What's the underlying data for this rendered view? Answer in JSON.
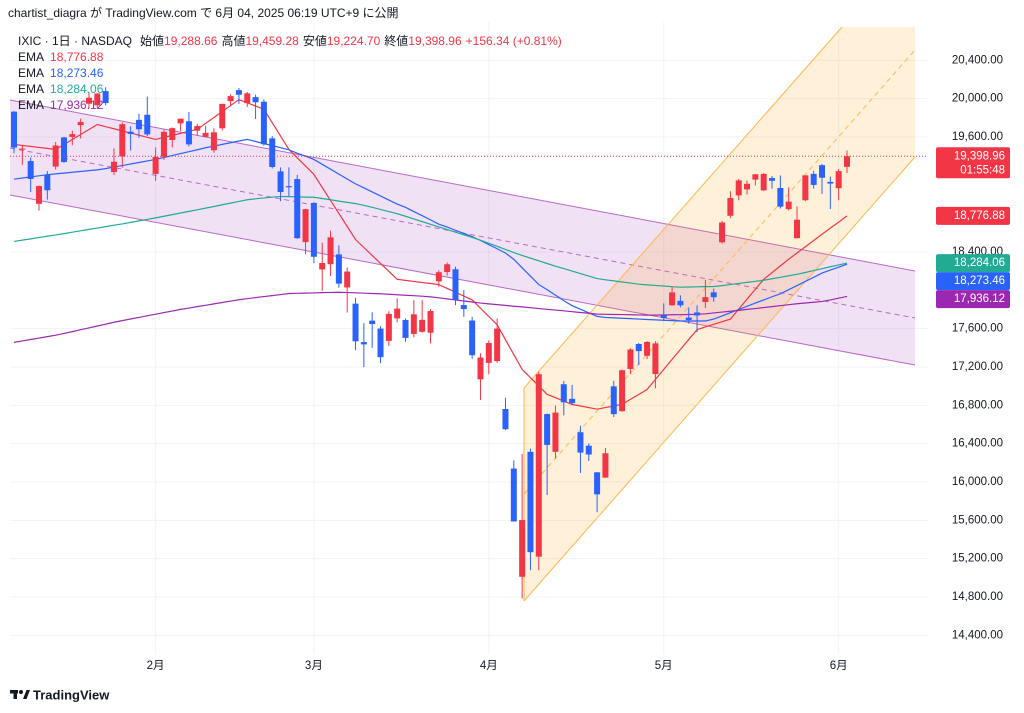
{
  "header": {
    "publisher": "chartist_diagra が TradingView.com で 6月 04, 2025 06:19 UTC+9 に公開"
  },
  "chart_data": {
    "type": "candlestick",
    "title": "IXIC · 1日 · NASDAQ",
    "ohlc_legend": [
      {
        "label": "始値",
        "value": "19,288.66"
      },
      {
        "label": "高値",
        "value": "19,459.28"
      },
      {
        "label": "安値",
        "value": "19,224.70"
      },
      {
        "label": "終値",
        "value": "19,398.96"
      }
    ],
    "change": "+156.34 (+0.81%)",
    "categories": [
      null,
      null,
      null,
      null,
      null,
      null,
      null,
      null,
      null,
      null,
      null,
      null,
      null,
      null,
      null,
      null,
      null,
      "2月",
      null,
      null,
      null,
      null,
      null,
      null,
      null,
      null,
      null,
      null,
      null,
      null,
      null,
      null,
      null,
      null,
      null,
      null,
      "3月",
      null,
      null,
      null,
      null,
      null,
      null,
      null,
      null,
      null,
      null,
      null,
      null,
      null,
      null,
      null,
      null,
      null,
      null,
      null,
      null,
      "4月",
      null,
      null,
      null,
      null,
      null,
      null,
      null,
      null,
      null,
      null,
      null,
      null,
      null,
      null,
      null,
      null,
      null,
      null,
      null,
      null,
      "5月",
      null,
      null,
      null,
      null,
      null,
      null,
      null,
      null,
      null,
      null,
      null,
      null,
      null,
      null,
      null,
      null,
      null,
      null,
      null,
      null,
      "6月",
      null
    ],
    "open": [
      19864,
      19469,
      19349,
      18903,
      19206,
      19291,
      19595,
      19601,
      19724,
      19947,
      19930,
      20079,
      19234,
      19398,
      19655,
      19779,
      19832,
      19215,
      19394,
      19569,
      19742,
      19764,
      19666,
      19602,
      19461,
      19691,
      19974,
      20089,
      19953,
      20016,
      19968,
      19586,
      19241,
      19087,
      19161,
      18503,
      18912,
      18218,
      18273,
      18375,
      18030,
      17861,
      17460,
      17684,
      17601,
      17473,
      17707,
      17691,
      17545,
      17567,
      17558,
      18094,
      18191,
      18220,
      17846,
      17685,
      17071,
      17243,
      17262,
      16762,
      16140,
      15011,
      16315,
      15221,
      16709,
      16315,
      17020,
      16868,
      16519,
      16379,
      16101,
      16046,
      16998,
      16739,
      17180,
      17440,
      17317,
      17126,
      17740,
      17844,
      17890,
      17716,
      17769,
      17878,
      17979,
      18501,
      18778,
      18991,
      19053,
      19155,
      19043,
      19172,
      19068,
      18848,
      18544,
      18940,
      19215,
      19306,
      19132,
      19066,
      19288.66
    ],
    "high": [
      19871,
      19517,
      19386,
      19094,
      19245,
      19548,
      19602,
      19666,
      19792,
      20068,
      20057,
      20118,
      19481,
      19752,
      19711,
      19842,
      20022,
      19491,
      19676,
      19700,
      19792,
      19862,
      19738,
      19716,
      19691,
      19948,
      20045,
      20111,
      20070,
      20042,
      19993,
      19609,
      19283,
      19283,
      19205,
      18852,
      18920,
      18498,
      18622,
      18469,
      18239,
      17922,
      17658,
      17771,
      17626,
      17782,
      17915,
      17707,
      17898,
      17897,
      17802,
      18209,
      18290,
      18247,
      18003,
      17723,
      17343,
      17477,
      17707,
      16878,
      16226,
      16292,
      16348,
      17152,
      16715,
      16798,
      17054,
      17013,
      16586,
      16402,
      16105,
      16355,
      17056,
      17172,
      17395,
      17450,
      17470,
      17470,
      17864,
      18040,
      17948,
      17821,
      17844,
      18109,
      18018,
      18725,
      19034,
      19163,
      19146,
      19212,
      19224,
      19193,
      19199,
      19074,
      18876,
      19199,
      19247,
      19318,
      19187,
      19265,
      19459.28
    ],
    "low": [
      19431,
      19308,
      19025,
      18831,
      18946,
      19260,
      19330,
      19514,
      19585,
      19900,
      19892,
      19930,
      19204,
      19280,
      19459,
      19593,
      19610,
      19141,
      19362,
      19491,
      19660,
      19501,
      19614,
      19594,
      19435,
      19667,
      19925,
      19946,
      19914,
      19788,
      19509,
      19272,
      18930,
      18982,
      18537,
      18377,
      18282,
      17996,
      18150,
      18027,
      17768,
      17375,
      17199,
      17400,
      17240,
      17420,
      17665,
      17463,
      17510,
      17558,
      17446,
      18036,
      18154,
      17845,
      17723,
      17286,
      16855,
      17125,
      17244,
      16543,
      15587,
      14784,
      15080,
      15079,
      15864,
      16247,
      16695,
      16801,
      16094,
      16219,
      15685,
      16043,
      16678,
      16734,
      17125,
      17220,
      17283,
      16977,
      17679,
      17838,
      17822,
      17652,
      17563,
      17814,
      17881,
      18487,
      18754,
      18940,
      18999,
      19094,
      19036,
      19061,
      18854,
      18834,
      18541,
      18930,
      19061,
      19006,
      18848,
      18940,
      19224.7
    ],
    "close": [
      19490,
      19479,
      19162,
      19088,
      19044,
      19511,
      19339,
      19630,
      19757,
      20010,
      20054,
      19954,
      19342,
      19734,
      19632,
      19681,
      19627,
      19392,
      19654,
      19692,
      19791,
      19523,
      19714,
      19643,
      19649,
      19945,
      20027,
      20041,
      20056,
      19962,
      19524,
      19287,
      19026,
      19075,
      18544,
      18847,
      18350,
      18285,
      18553,
      18070,
      18196,
      17468,
      17436,
      17648,
      17303,
      17754,
      17809,
      17504,
      17750,
      17692,
      17784,
      18189,
      18272,
      17899,
      17805,
      17323,
      17299,
      17450,
      17601,
      16551,
      15588,
      15603,
      15268,
      17125,
      16387,
      16724,
      16831,
      16823,
      16307,
      16287,
      15871,
      16300,
      16708,
      17166,
      17383,
      17366,
      17461,
      17446,
      17711,
      17978,
      17844,
      17690,
      17738,
      17929,
      17928,
      18708,
      18963,
      19147,
      19112,
      19211,
      19215,
      19143,
      18873,
      18926,
      18737,
      19200,
      19100,
      19175,
      19114,
      19243,
      19398.96
    ],
    "up_color": "#f23645",
    "down_color": "#2962ff",
    "last_price_label": "19,398.96",
    "countdown": "01:55:48",
    "series": [
      {
        "name": "EMA",
        "color": "#f23645",
        "value_label": "18,776.88",
        "values": [
          19523,
          19512,
          19502,
          19491,
          19481,
          19470,
          19522,
          19574,
          19626,
          19678,
          19730,
          19708,
          19686,
          19663,
          19641,
          19619,
          19597,
          19575,
          19596,
          19617,
          19638,
          19659,
          19680,
          19742,
          19804,
          19866,
          19928,
          19990,
          19957,
          19923,
          19890,
          19750,
          19610,
          19470,
          19383,
          19297,
          19210,
          19074,
          18938,
          18802,
          18666,
          18530,
          18447,
          18364,
          18281,
          18198,
          18115,
          18104,
          18093,
          18082,
          18071,
          18060,
          18020,
          17980,
          17940,
          17900,
          17813,
          17727,
          17640,
          17485,
          17330,
          17175,
          17088,
          17002,
          16915,
          16880,
          16845,
          16810,
          16793,
          16777,
          16760,
          16777,
          16793,
          16810,
          16862,
          16913,
          16965,
          17070,
          17175,
          17280,
          17383,
          17487,
          17590,
          17618,
          17645,
          17673,
          17700,
          17804,
          17908,
          18011,
          18115,
          18185,
          18255,
          18325,
          18390,
          18455,
          18520,
          18585,
          18649,
          18712,
          18776.88
        ]
      },
      {
        "name": "EMA",
        "color": "#2962ff",
        "value_label": "18,273.46",
        "values": [
          19160,
          19172,
          19183,
          19195,
          19207,
          19215,
          19223,
          19232,
          19240,
          19249,
          19257,
          19270,
          19286,
          19302,
          19318,
          19334,
          19350,
          19366,
          19386,
          19406,
          19427,
          19447,
          19467,
          19488,
          19505,
          19523,
          19540,
          19558,
          19575,
          19553,
          19531,
          19510,
          19488,
          19466,
          19431,
          19400,
          19366,
          19315,
          19264,
          19213,
          19162,
          19111,
          19070,
          19027,
          18985,
          18942,
          18900,
          18866,
          18822,
          18779,
          18735,
          18690,
          18660,
          18627,
          18594,
          18560,
          18520,
          18477,
          18434,
          18390,
          18323,
          18235,
          18148,
          18060,
          18007,
          17950,
          17893,
          17840,
          17803,
          17765,
          17728,
          17717,
          17713,
          17709,
          17705,
          17700,
          17696,
          17692,
          17688,
          17684,
          17680,
          17680,
          17680,
          17680,
          17700,
          17733,
          17767,
          17800,
          17833,
          17867,
          17900,
          17933,
          17964,
          18007,
          18050,
          18093,
          18136,
          18180,
          18211,
          18242,
          18273.46
        ]
      },
      {
        "name": "EMA",
        "color": "#22ab94",
        "value_label": "18,284.06",
        "values": [
          18510,
          18524,
          18537,
          18551,
          18564,
          18578,
          18592,
          18607,
          18621,
          18636,
          18650,
          18665,
          18680,
          18693,
          18709,
          18725,
          18740,
          18756,
          18773,
          18790,
          18807,
          18824,
          18840,
          18858,
          18875,
          18893,
          18910,
          18928,
          18945,
          18955,
          18964,
          18972,
          18980,
          18978,
          18975,
          18973,
          18971,
          18958,
          18945,
          18931,
          18918,
          18905,
          18887,
          18866,
          18844,
          18822,
          18800,
          18773,
          18745,
          18717,
          18689,
          18661,
          18634,
          18607,
          18580,
          18552,
          18523,
          18491,
          18459,
          18427,
          18394,
          18364,
          18336,
          18308,
          18280,
          18252,
          18227,
          18201,
          18175,
          18149,
          18123,
          18110,
          18099,
          18087,
          18076,
          18064,
          18057,
          18051,
          18045,
          18038,
          18033,
          18035,
          18037,
          18039,
          18040,
          18049,
          18060,
          18072,
          18083,
          18094,
          18105,
          18121,
          18136,
          18152,
          18167,
          18186,
          18206,
          18226,
          18246,
          18265,
          18284.06
        ]
      },
      {
        "name": "EMA",
        "color": "#9c27b0",
        "value_label": "17,936.12",
        "values": [
          17457,
          17472,
          17487,
          17502,
          17517,
          17532,
          17550,
          17569,
          17589,
          17608,
          17628,
          17647,
          17667,
          17684,
          17701,
          17717,
          17734,
          17751,
          17768,
          17784,
          17801,
          17815,
          17830,
          17844,
          17859,
          17873,
          17888,
          17902,
          17913,
          17924,
          17935,
          17945,
          17956,
          17967,
          17969,
          17971,
          17973,
          17976,
          17978,
          17980,
          17977,
          17974,
          17970,
          17967,
          17964,
          17959,
          17954,
          17949,
          17944,
          17939,
          17932,
          17922,
          17911,
          17900,
          17889,
          17878,
          17867,
          17859,
          17851,
          17843,
          17834,
          17827,
          17819,
          17810,
          17802,
          17794,
          17786,
          17777,
          17769,
          17761,
          17752,
          17750,
          17748,
          17747,
          17745,
          17743,
          17741,
          17741,
          17743,
          17745,
          17746,
          17748,
          17750,
          17755,
          17764,
          17773,
          17782,
          17791,
          17801,
          17810,
          17820,
          17830,
          17840,
          17850,
          17860,
          17868,
          17876,
          17884,
          17900,
          17918,
          17936.12
        ]
      }
    ],
    "ylim": [
      14200,
      20800
    ],
    "yticks": [
      {
        "value": 14400,
        "label": "14,400.00"
      },
      {
        "value": 14800,
        "label": "14,800.00"
      },
      {
        "value": 15200,
        "label": "15,200.00"
      },
      {
        "value": 15600,
        "label": "15,600.00"
      },
      {
        "value": 16000,
        "label": "16,000.00"
      },
      {
        "value": 16400,
        "label": "16,400.00"
      },
      {
        "value": 16800,
        "label": "16,800.00"
      },
      {
        "value": 17200,
        "label": "17,200.00"
      },
      {
        "value": 17600,
        "label": "17,600.00"
      },
      {
        "value": 18400,
        "label": "18,400.00"
      },
      {
        "value": 19600,
        "label": "19,600.00"
      },
      {
        "value": 20000,
        "label": "20,000.00"
      },
      {
        "value": 20400,
        "label": "20,400.00"
      }
    ],
    "grid": true
  },
  "footer": {
    "brand": "TradingView"
  }
}
